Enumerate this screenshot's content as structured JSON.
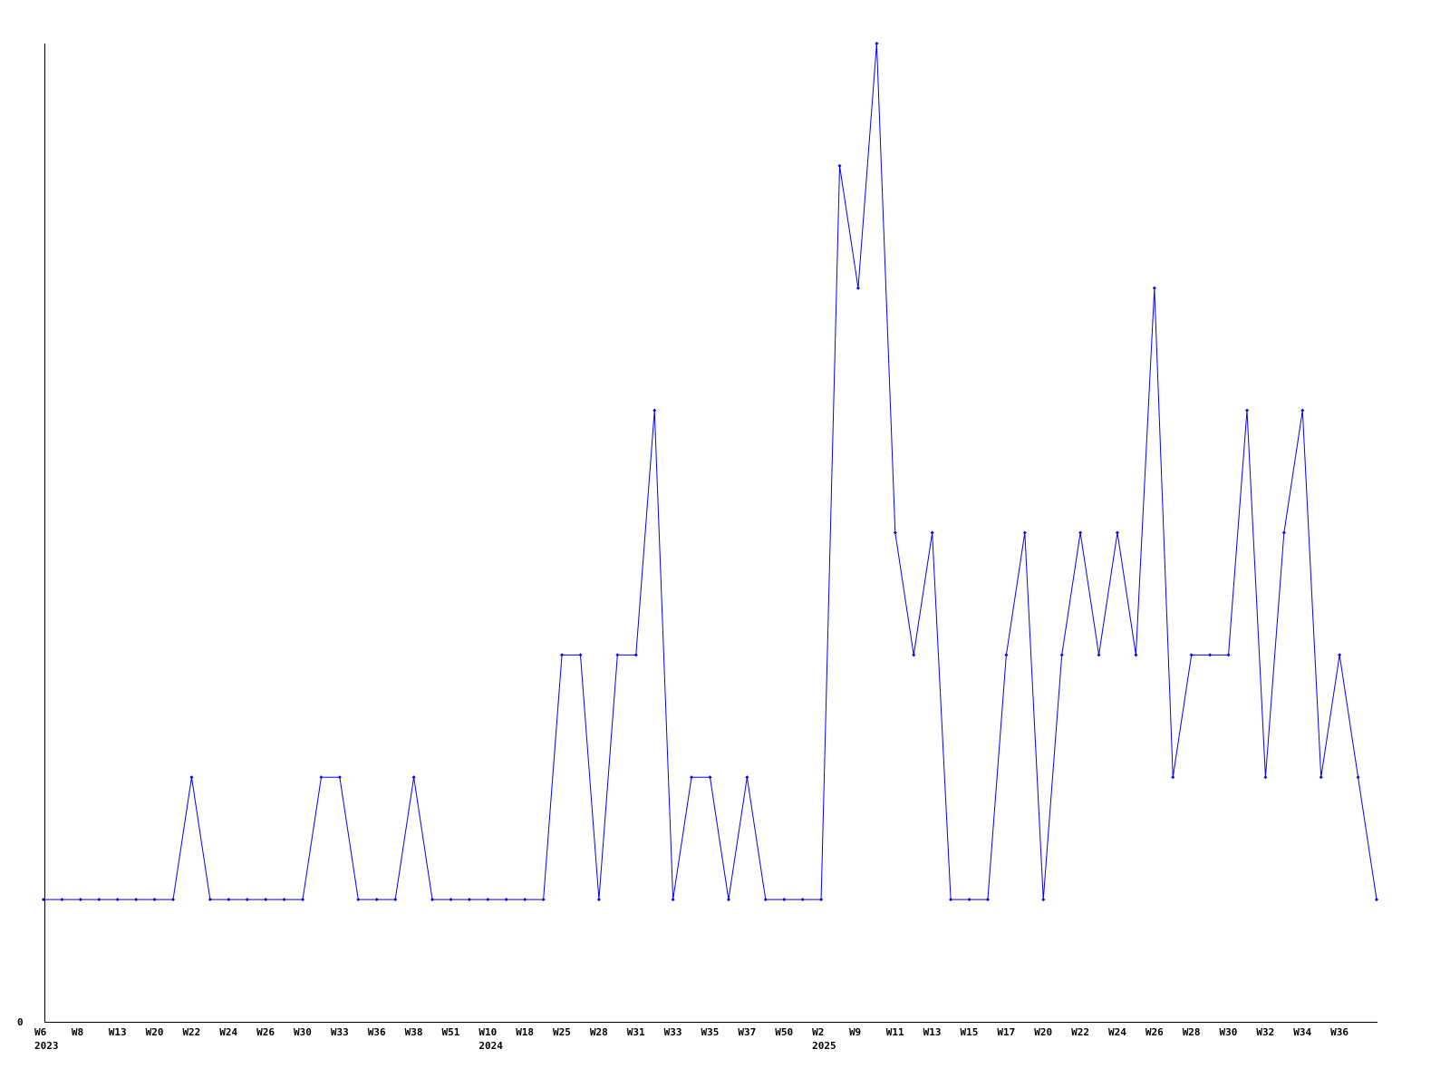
{
  "chart_data": {
    "type": "line",
    "title": "",
    "xlabel": "",
    "ylabel": "",
    "ylim": [
      0,
      8
    ],
    "y_tick_labels": [
      "0"
    ],
    "grid": false,
    "legend": "none",
    "line_color": "#0000ff",
    "categories": [
      "W6",
      "",
      "W8",
      "",
      "W13",
      "",
      "W20",
      "",
      "W22",
      "",
      "W24",
      "",
      "W26",
      "",
      "W30",
      "",
      "W33",
      "",
      "W36",
      "",
      "W38",
      "",
      "W51",
      "",
      "W10",
      "",
      "W18",
      "",
      "W25",
      "",
      "W28",
      "",
      "W31",
      "",
      "W33",
      "",
      "W35",
      "",
      "W37",
      "",
      "W50",
      "",
      "W2",
      "",
      "W9",
      "",
      "W11",
      "",
      "W13",
      "",
      "W15",
      "",
      "W17",
      "",
      "W20",
      "",
      "W22",
      "",
      "W24",
      "",
      "W26",
      "",
      "W28",
      "",
      "W30",
      "",
      "W32",
      "",
      "W34",
      "",
      "W36",
      "",
      ""
    ],
    "year_labels": [
      {
        "category_index": 0,
        "label": "2023"
      },
      {
        "category_index": 24,
        "label": "2024"
      },
      {
        "category_index": 42,
        "label": "2025"
      }
    ],
    "values": [
      1,
      1,
      1,
      1,
      1,
      1,
      1,
      1,
      2,
      1,
      1,
      1,
      1,
      1,
      1,
      2,
      2,
      1,
      1,
      1,
      2,
      1,
      1,
      1,
      1,
      1,
      1,
      1,
      3,
      3,
      1,
      3,
      3,
      5,
      1,
      2,
      2,
      1,
      2,
      1,
      1,
      1,
      1,
      7,
      6,
      8,
      4,
      3,
      4,
      1,
      1,
      1,
      3,
      4,
      1,
      3,
      4,
      3,
      4,
      3,
      6,
      2,
      3,
      3,
      3,
      5,
      2,
      4,
      5,
      2,
      3,
      2,
      1
    ]
  }
}
